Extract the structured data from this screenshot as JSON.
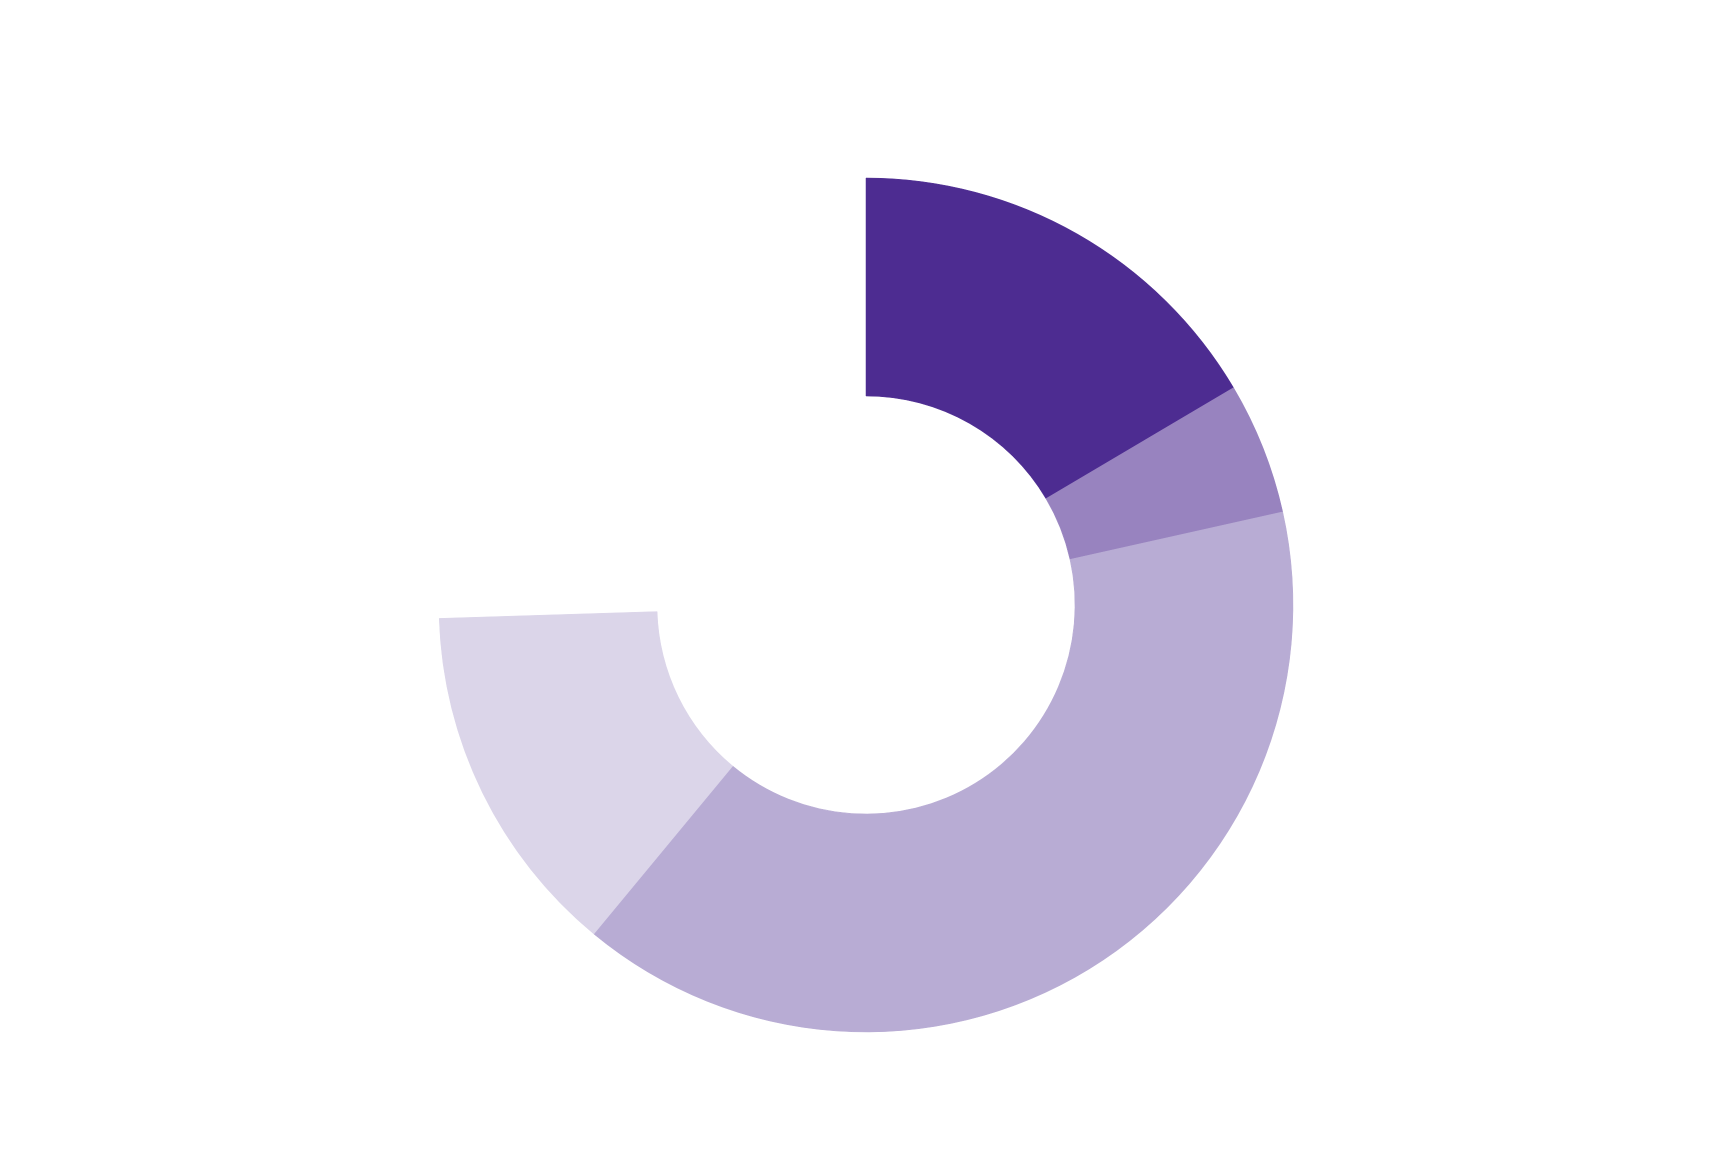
{
  "chart_data": {
    "type": "donut",
    "categories": [
      null,
      null,
      null,
      null,
      null
    ],
    "values": [
      16.5,
      5.0,
      39.5,
      13.5,
      25.5
    ],
    "colors": [
      "#4d2c91",
      "#9883bf",
      "#b8acd4",
      "#dbd5e9",
      "none"
    ]
  }
}
